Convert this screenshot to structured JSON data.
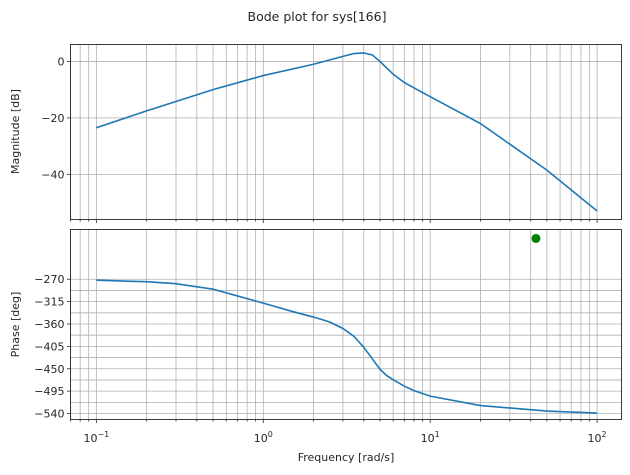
{
  "chart_data": {
    "type": "line",
    "title": "Bode plot for sys[166]",
    "xlabel": "Frequency [rad/s]",
    "xscale": "log",
    "xlim": [
      0.07,
      140
    ],
    "x_ticks": [
      {
        "value": 0.1,
        "base": "10",
        "exp": "−1"
      },
      {
        "value": 1,
        "base": "10",
        "exp": "0"
      },
      {
        "value": 10,
        "base": "10",
        "exp": "1"
      },
      {
        "value": 100,
        "base": "10",
        "exp": "2"
      }
    ],
    "grid": true,
    "panels": [
      {
        "name": "magnitude",
        "ylabel": "Magnitude [dB]",
        "ylim": [
          -56,
          6
        ],
        "y_ticks": [
          0,
          -20,
          -40
        ],
        "y_tick_labels": [
          "0",
          "−20",
          "−40"
        ],
        "series": [
          {
            "color": "#1f77b4",
            "x": [
              0.1,
              0.2,
              0.5,
              1,
              2,
              3,
              3.5,
              4,
              4.5,
              5,
              6,
              7,
              10,
              20,
              50,
              100
            ],
            "y": [
              -23.5,
              -17.5,
              -10,
              -5,
              -1,
              1.8,
              2.8,
              3,
              2.3,
              0,
              -4.5,
              -7.5,
              -12.5,
              -22,
              -38.5,
              -53
            ]
          }
        ]
      },
      {
        "name": "phase",
        "ylabel": "Phase [deg]",
        "ylim": [
          -552,
          -170
        ],
        "y_ticks": [
          -270,
          -315,
          -360,
          -405,
          -450,
          -495,
          -540
        ],
        "y_tick_labels": [
          "−270",
          "−315",
          "−360",
          "−405",
          "−450",
          "−495",
          "−540"
        ],
        "y_minor_grid": [
          -292.5,
          -337.5,
          -382.5,
          -427.5,
          -472.5,
          -517.5
        ],
        "series": [
          {
            "color": "#1f77b4",
            "x": [
              0.1,
              0.2,
              0.3,
              0.5,
              1,
              1.5,
              2,
              2.5,
              3,
              3.5,
              4,
              4.5,
              5,
              5.5,
              6,
              7,
              8,
              10,
              20,
              50,
              100
            ],
            "y": [
              -272,
              -275,
              -279,
              -290,
              -318,
              -335,
              -346,
              -356,
              -369,
              -385,
              -407,
              -430,
              -451,
              -464,
              -472,
              -485,
              -494,
              -505,
              -524,
              -535,
              -539
            ]
          }
        ],
        "markers": [
          {
            "x": 43,
            "y": -188,
            "color": "#008000"
          }
        ]
      }
    ]
  }
}
